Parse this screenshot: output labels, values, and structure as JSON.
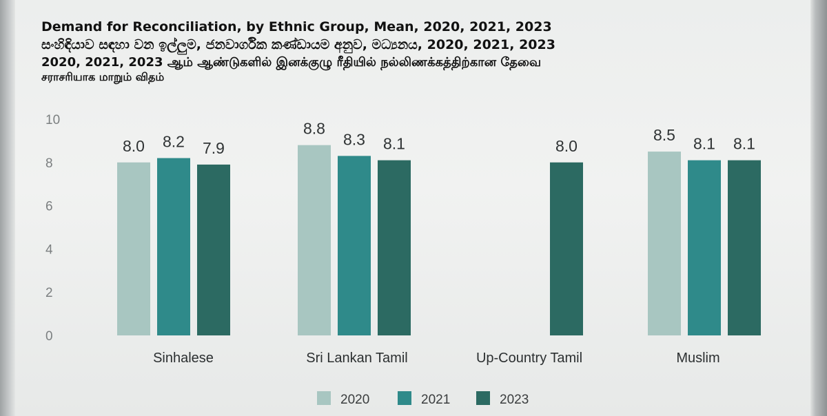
{
  "header": {
    "title_en": "Demand for Reconciliation, by Ethnic Group, Mean, 2020, 2021, 2023",
    "title_si": "සංහිඳියාව සඳහා වන ඉල්ලුම, ජනවාර්ගික කණ්ඩායම අනුව, මධ්‍යනය, 2020, 2021, 2023",
    "title_ta_line1": "2020, 2021, 2023 ஆம் ஆண்டுகளில் இனக்குழு ரீதியில் நல்லிணக்கத்திற்கான தேவை",
    "title_ta_line2": "சராசரியாக மாறும் விதம்"
  },
  "colors": {
    "s2020": "#a8c6c1",
    "s2021": "#2f8a8a",
    "s2023": "#2c6a62"
  },
  "chart_data": {
    "type": "bar",
    "title": "Demand for Reconciliation, by Ethnic Group, Mean, 2020, 2021, 2023",
    "xlabel": "",
    "ylabel": "",
    "ylim": [
      0,
      10
    ],
    "yticks": [
      "0",
      "2",
      "4",
      "6",
      "8",
      "10"
    ],
    "grid": false,
    "legend_position": "bottom-center",
    "categories": [
      "Sinhalese",
      "Sri Lankan Tamil",
      "Up-Country Tamil",
      "Muslim"
    ],
    "series": [
      {
        "name": "2020",
        "values": [
          8.0,
          8.8,
          null,
          8.5
        ],
        "labels": [
          "8.0",
          "8.8",
          "",
          "8.5"
        ]
      },
      {
        "name": "2021",
        "values": [
          8.2,
          8.3,
          null,
          8.1
        ],
        "labels": [
          "8.2",
          "8.3",
          "",
          "8.1"
        ]
      },
      {
        "name": "2023",
        "values": [
          7.9,
          8.1,
          8.0,
          8.1
        ],
        "labels": [
          "7.9",
          "8.1",
          "8.0",
          "8.1"
        ]
      }
    ]
  }
}
